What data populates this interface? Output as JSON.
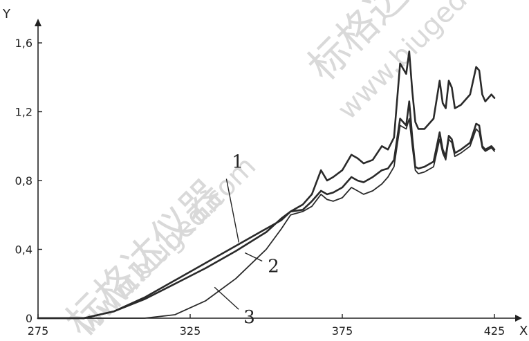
{
  "chart_data": {
    "type": "line",
    "xlabel": "X",
    "ylabel": "Y",
    "xlim": [
      275,
      425
    ],
    "ylim": [
      0,
      1.6
    ],
    "x_ticks": [
      "275",
      "325",
      "375",
      "425"
    ],
    "y_ticks": [
      "0",
      "0,4",
      "0,8",
      "1,2",
      "1,6"
    ],
    "x_tick_values": [
      275,
      325,
      375,
      425
    ],
    "y_tick_values": [
      0,
      0.4,
      0.8,
      1.2,
      1.6
    ],
    "grid": false,
    "series": [
      {
        "name": "1",
        "x": [
          275,
          290,
          300,
          310,
          320,
          330,
          340,
          350,
          355,
          358,
          362,
          365,
          368,
          370,
          372,
          375,
          378,
          380,
          382,
          385,
          388,
          390,
          392,
          394,
          396,
          397,
          398,
          399,
          400,
          402,
          405,
          407,
          408,
          409,
          410,
          411,
          412,
          414,
          417,
          419,
          420,
          421,
          422,
          423,
          424,
          425
        ],
        "y": [
          0,
          0,
          0.04,
          0.12,
          0.22,
          0.32,
          0.42,
          0.52,
          0.57,
          0.62,
          0.66,
          0.72,
          0.86,
          0.8,
          0.82,
          0.86,
          0.95,
          0.93,
          0.9,
          0.92,
          1.0,
          0.98,
          1.05,
          1.48,
          1.42,
          1.55,
          1.32,
          1.14,
          1.1,
          1.1,
          1.16,
          1.38,
          1.25,
          1.22,
          1.38,
          1.34,
          1.22,
          1.24,
          1.3,
          1.46,
          1.44,
          1.3,
          1.26,
          1.28,
          1.3,
          1.28
        ]
      },
      {
        "name": "2",
        "x": [
          275,
          290,
          300,
          310,
          320,
          330,
          340,
          350,
          355,
          358,
          362,
          365,
          368,
          370,
          372,
          375,
          378,
          380,
          382,
          385,
          388,
          390,
          392,
          394,
          396,
          397,
          398,
          399,
          400,
          402,
          405,
          407,
          408,
          409,
          410,
          411,
          412,
          414,
          417,
          419,
          420,
          421,
          422,
          423,
          424,
          425
        ],
        "y": [
          0,
          0,
          0.04,
          0.11,
          0.2,
          0.29,
          0.39,
          0.5,
          0.58,
          0.62,
          0.63,
          0.68,
          0.74,
          0.72,
          0.73,
          0.76,
          0.82,
          0.8,
          0.79,
          0.82,
          0.86,
          0.87,
          0.92,
          1.16,
          1.12,
          1.26,
          1.05,
          0.88,
          0.87,
          0.88,
          0.91,
          1.08,
          0.98,
          0.94,
          1.06,
          1.04,
          0.96,
          0.98,
          1.02,
          1.13,
          1.12,
          1.0,
          0.98,
          0.99,
          1.0,
          0.98
        ]
      },
      {
        "name": "3",
        "x": [
          275,
          300,
          310,
          320,
          330,
          340,
          350,
          355,
          358,
          362,
          365,
          368,
          370,
          372,
          375,
          378,
          380,
          382,
          385,
          388,
          390,
          392,
          394,
          396,
          397,
          398,
          399,
          400,
          402,
          405,
          407,
          408,
          409,
          410,
          411,
          412,
          414,
          417,
          419,
          420,
          421,
          422,
          423,
          424,
          425
        ],
        "y": [
          0,
          0,
          0,
          0.02,
          0.1,
          0.23,
          0.4,
          0.52,
          0.6,
          0.62,
          0.65,
          0.72,
          0.69,
          0.68,
          0.7,
          0.76,
          0.74,
          0.72,
          0.74,
          0.78,
          0.82,
          0.88,
          1.12,
          1.1,
          1.16,
          1.0,
          0.86,
          0.84,
          0.85,
          0.88,
          1.04,
          0.96,
          0.92,
          1.04,
          1.02,
          0.94,
          0.96,
          1.0,
          1.1,
          1.08,
          0.99,
          0.97,
          0.98,
          0.99,
          0.97
        ]
      }
    ],
    "annotations": [
      {
        "text": "1",
        "series": "1",
        "anchor_x": 341,
        "anchor_y": 0.44
      },
      {
        "text": "2",
        "series": "2",
        "anchor_x": 343,
        "anchor_y": 0.38
      },
      {
        "text": "3",
        "series": "3",
        "anchor_x": 333,
        "anchor_y": 0.18
      }
    ]
  },
  "watermark": {
    "cn": "标格达仪器",
    "url": "www.biuged.com"
  }
}
